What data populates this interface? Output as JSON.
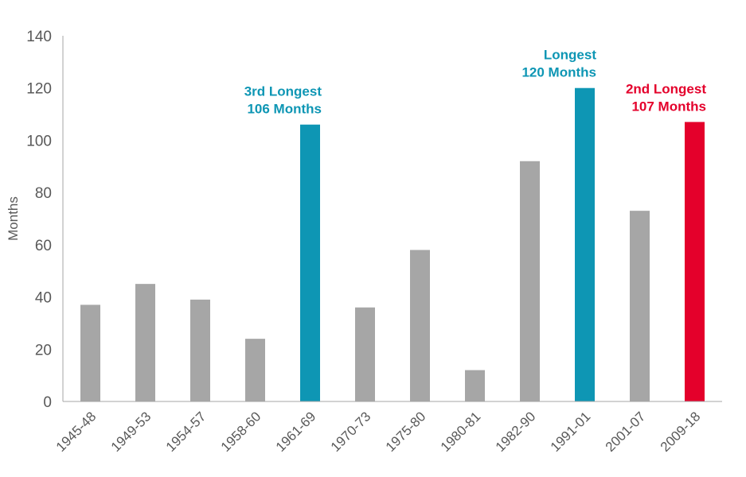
{
  "chart_data": {
    "type": "bar",
    "title": "",
    "xlabel": "",
    "ylabel": "Months",
    "ylim": [
      0,
      140
    ],
    "yticks": [
      0,
      20,
      40,
      60,
      80,
      100,
      120,
      140
    ],
    "grid": false,
    "categories": [
      "1945-48",
      "1949-53",
      "1954-57",
      "1958-60",
      "1961-69",
      "1970-73",
      "1975-80",
      "1980-81",
      "1982-90",
      "1991-01",
      "2001-07",
      "2009-18"
    ],
    "values": [
      37,
      45,
      39,
      24,
      106,
      36,
      58,
      12,
      92,
      120,
      73,
      107
    ],
    "bar_colors": [
      "#a6a6a6",
      "#a6a6a6",
      "#a6a6a6",
      "#a6a6a6",
      "#0e96b4",
      "#a6a6a6",
      "#a6a6a6",
      "#a6a6a6",
      "#a6a6a6",
      "#0e96b4",
      "#a6a6a6",
      "#e4002b"
    ],
    "annotations": [
      {
        "category": "1961-69",
        "line1": "3rd Longest",
        "line2": "106 Months",
        "color": "#0e96b4"
      },
      {
        "category": "1991-01",
        "line1": "Longest",
        "line2": "120 Months",
        "color": "#0e96b4"
      },
      {
        "category": "2009-18",
        "line1": "2nd Longest",
        "line2": "107 Months",
        "color": "#e4002b"
      }
    ],
    "axis_color": "#a6a6a6",
    "label_color": "#595959"
  }
}
